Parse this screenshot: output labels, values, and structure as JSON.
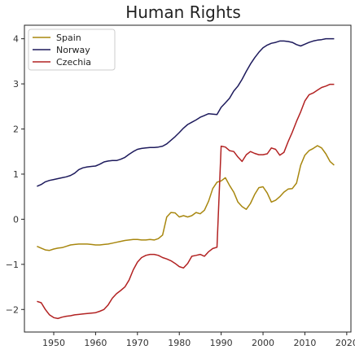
{
  "chart_data": {
    "type": "line",
    "title": "Human Rights",
    "xlabel": "",
    "ylabel": "",
    "xlim": [
      1943,
      2021
    ],
    "ylim": [
      -2.5,
      4.3
    ],
    "xticks": [
      1950,
      1960,
      1970,
      1980,
      1990,
      2000,
      2010,
      2020
    ],
    "yticks": [
      -2,
      -1,
      0,
      1,
      2,
      3,
      4
    ],
    "grid": false,
    "legend_position": "top-left",
    "series": [
      {
        "name": "Spain",
        "color": "#a8870f",
        "x": [
          1946,
          1947,
          1948,
          1949,
          1950,
          1951,
          1952,
          1953,
          1954,
          1955,
          1956,
          1957,
          1958,
          1959,
          1960,
          1961,
          1962,
          1963,
          1964,
          1965,
          1966,
          1967,
          1968,
          1969,
          1970,
          1971,
          1972,
          1973,
          1974,
          1975,
          1976,
          1977,
          1978,
          1979,
          1980,
          1981,
          1982,
          1983,
          1984,
          1985,
          1986,
          1987,
          1988,
          1989,
          1990,
          1991,
          1992,
          1993,
          1994,
          1995,
          1996,
          1997,
          1998,
          1999,
          2000,
          2001,
          2002,
          2003,
          2004,
          2005,
          2006,
          2007,
          2008,
          2009,
          2010,
          2011,
          2012,
          2013,
          2014,
          2015,
          2016,
          2017
        ],
        "y": [
          -0.6,
          -0.64,
          -0.68,
          -0.69,
          -0.66,
          -0.64,
          -0.63,
          -0.6,
          -0.57,
          -0.56,
          -0.55,
          -0.55,
          -0.55,
          -0.56,
          -0.57,
          -0.57,
          -0.56,
          -0.55,
          -0.53,
          -0.51,
          -0.49,
          -0.47,
          -0.46,
          -0.45,
          -0.45,
          -0.46,
          -0.46,
          -0.45,
          -0.46,
          -0.43,
          -0.35,
          0.05,
          0.15,
          0.14,
          0.05,
          0.08,
          0.05,
          0.08,
          0.15,
          0.12,
          0.2,
          0.4,
          0.68,
          0.82,
          0.85,
          0.92,
          0.75,
          0.6,
          0.38,
          0.28,
          0.22,
          0.35,
          0.55,
          0.7,
          0.72,
          0.58,
          0.38,
          0.42,
          0.5,
          0.6,
          0.67,
          0.68,
          0.8,
          1.2,
          1.42,
          1.52,
          1.57,
          1.63,
          1.58,
          1.45,
          1.28,
          1.2
        ]
      },
      {
        "name": "Norway",
        "color": "#1d1a5c",
        "x": [
          1946,
          1947,
          1948,
          1949,
          1950,
          1951,
          1952,
          1953,
          1954,
          1955,
          1956,
          1957,
          1958,
          1959,
          1960,
          1961,
          1962,
          1963,
          1964,
          1965,
          1966,
          1967,
          1968,
          1969,
          1970,
          1971,
          1972,
          1973,
          1974,
          1975,
          1976,
          1977,
          1978,
          1979,
          1980,
          1981,
          1982,
          1983,
          1984,
          1985,
          1986,
          1987,
          1988,
          1989,
          1990,
          1991,
          1992,
          1993,
          1994,
          1995,
          1996,
          1997,
          1998,
          1999,
          2000,
          2001,
          2002,
          2003,
          2004,
          2005,
          2006,
          2007,
          2008,
          2009,
          2010,
          2011,
          2012,
          2013,
          2014,
          2015,
          2016,
          2017
        ],
        "y": [
          0.73,
          0.77,
          0.83,
          0.86,
          0.88,
          0.9,
          0.92,
          0.94,
          0.97,
          1.02,
          1.1,
          1.14,
          1.16,
          1.17,
          1.18,
          1.22,
          1.27,
          1.29,
          1.3,
          1.3,
          1.33,
          1.37,
          1.44,
          1.5,
          1.55,
          1.57,
          1.58,
          1.59,
          1.59,
          1.6,
          1.62,
          1.67,
          1.75,
          1.83,
          1.92,
          2.02,
          2.1,
          2.15,
          2.2,
          2.26,
          2.3,
          2.34,
          2.33,
          2.32,
          2.48,
          2.58,
          2.68,
          2.84,
          2.95,
          3.1,
          3.28,
          3.44,
          3.58,
          3.7,
          3.8,
          3.86,
          3.9,
          3.92,
          3.95,
          3.95,
          3.94,
          3.92,
          3.87,
          3.84,
          3.88,
          3.92,
          3.95,
          3.97,
          3.98,
          4.0,
          4.0,
          4.0
        ]
      },
      {
        "name": "Czechia",
        "color": "#b22222",
        "x": [
          1946,
          1947,
          1948,
          1949,
          1950,
          1951,
          1952,
          1953,
          1954,
          1955,
          1956,
          1957,
          1958,
          1959,
          1960,
          1961,
          1962,
          1963,
          1964,
          1965,
          1966,
          1967,
          1968,
          1969,
          1970,
          1971,
          1972,
          1973,
          1974,
          1975,
          1976,
          1977,
          1978,
          1979,
          1980,
          1981,
          1982,
          1983,
          1984,
          1985,
          1986,
          1987,
          1988,
          1989,
          1990,
          1991,
          1992,
          1993,
          1994,
          1995,
          1996,
          1997,
          1998,
          1999,
          2000,
          2001,
          2002,
          2003,
          2004,
          2005,
          2006,
          2007,
          2008,
          2009,
          2010,
          2011,
          2012,
          2013,
          2014,
          2015,
          2016,
          2017
        ],
        "y": [
          -1.82,
          -1.85,
          -2.0,
          -2.12,
          -2.18,
          -2.2,
          -2.17,
          -2.15,
          -2.14,
          -2.12,
          -2.11,
          -2.1,
          -2.09,
          -2.08,
          -2.07,
          -2.04,
          -2.0,
          -1.9,
          -1.75,
          -1.65,
          -1.58,
          -1.5,
          -1.35,
          -1.12,
          -0.95,
          -0.85,
          -0.8,
          -0.78,
          -0.78,
          -0.8,
          -0.85,
          -0.88,
          -0.92,
          -0.98,
          -1.05,
          -1.08,
          -0.98,
          -0.82,
          -0.8,
          -0.78,
          -0.82,
          -0.72,
          -0.65,
          -0.62,
          1.62,
          1.6,
          1.52,
          1.5,
          1.38,
          1.28,
          1.43,
          1.5,
          1.46,
          1.43,
          1.43,
          1.45,
          1.58,
          1.55,
          1.42,
          1.48,
          1.72,
          1.93,
          2.17,
          2.38,
          2.62,
          2.76,
          2.8,
          2.86,
          2.92,
          2.95,
          2.99,
          2.99
        ]
      }
    ]
  }
}
